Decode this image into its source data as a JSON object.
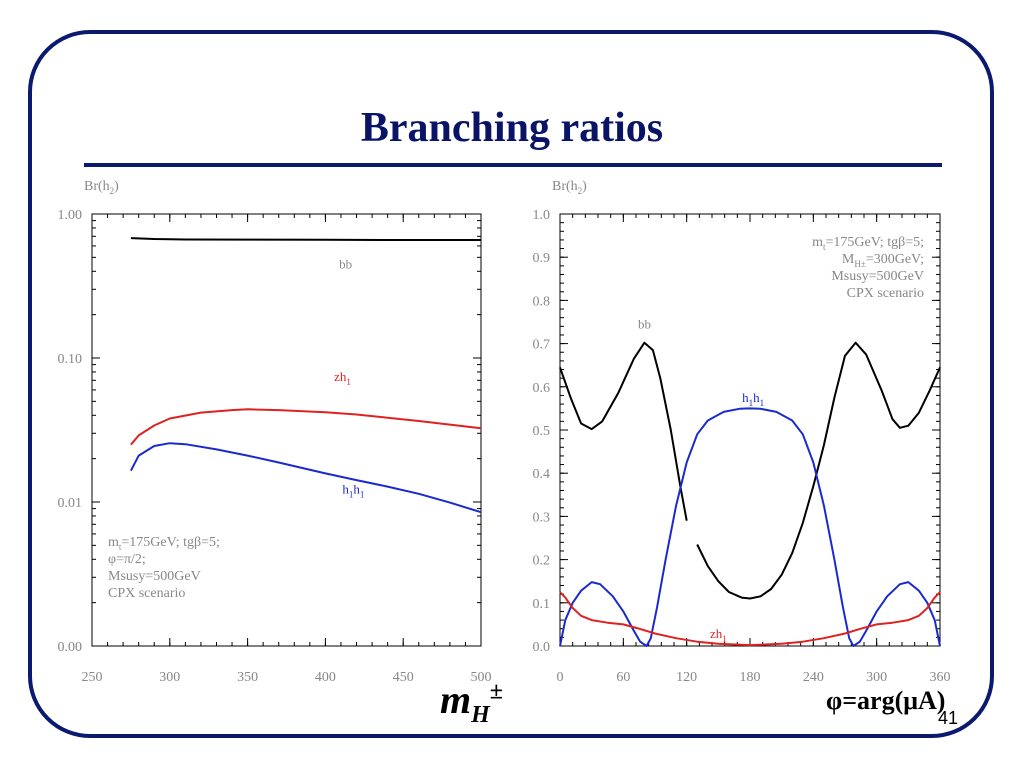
{
  "slide": {
    "title": "Branching ratios",
    "page_number": "41",
    "colors": {
      "frame": "#0a1a6e",
      "title": "#0a1466"
    }
  },
  "chart_data": [
    {
      "type": "line",
      "y_scale": "log",
      "ylabel": "Br(h2)",
      "xlabel": "mH±",
      "xlim": [
        250,
        500
      ],
      "ylim": [
        0.001,
        1.0
      ],
      "x_ticks": [
        250,
        300,
        350,
        400,
        450,
        500
      ],
      "y_ticks": [
        {
          "value": 0.001,
          "label": "0.00"
        },
        {
          "value": 0.01,
          "label": "0.01"
        },
        {
          "value": 0.1,
          "label": "0.10"
        },
        {
          "value": 1.0,
          "label": "1.00"
        }
      ],
      "grid": false,
      "series": [
        {
          "name": "bb",
          "color": "#000000",
          "points": [
            [
              275,
              0.68
            ],
            [
              290,
              0.67
            ],
            [
              310,
              0.665
            ],
            [
              350,
              0.664
            ],
            [
              400,
              0.662
            ],
            [
              450,
              0.66
            ],
            [
              500,
              0.66
            ]
          ],
          "label_at": [
            413,
            0.42
          ]
        },
        {
          "name": "zh1",
          "color": "#dd2222",
          "points": [
            [
              275,
              0.025
            ],
            [
              280,
              0.029
            ],
            [
              290,
              0.034
            ],
            [
              300,
              0.038
            ],
            [
              320,
              0.0418
            ],
            [
              340,
              0.0435
            ],
            [
              350,
              0.044
            ],
            [
              370,
              0.0435
            ],
            [
              400,
              0.042
            ],
            [
              420,
              0.0405
            ],
            [
              440,
              0.0385
            ],
            [
              460,
              0.0365
            ],
            [
              480,
              0.0345
            ],
            [
              500,
              0.0325
            ]
          ],
          "label_at": [
            411,
            0.069
          ]
        },
        {
          "name": "h1h1",
          "color": "#1a2acc",
          "points": [
            [
              275,
              0.0165
            ],
            [
              280,
              0.021
            ],
            [
              290,
              0.0245
            ],
            [
              300,
              0.0256
            ],
            [
              310,
              0.0252
            ],
            [
              330,
              0.0232
            ],
            [
              350,
              0.021
            ],
            [
              370,
              0.0188
            ],
            [
              400,
              0.0158
            ],
            [
              420,
              0.0142
            ],
            [
              440,
              0.0128
            ],
            [
              460,
              0.0114
            ],
            [
              480,
              0.0099
            ],
            [
              500,
              0.0085
            ]
          ],
          "label_at": [
            418,
            0.0115
          ]
        }
      ],
      "annotation": [
        "mt=175GeV; tgβ=5;",
        "φ=π/2;",
        "Msusy=500GeV",
        "CPX scenario"
      ]
    },
    {
      "type": "line",
      "ylabel": "Br(h2)",
      "xlabel": "φ=arg(μA)",
      "xlim": [
        0,
        360
      ],
      "ylim": [
        0.0,
        1.0
      ],
      "x_ticks": [
        0,
        60,
        120,
        180,
        240,
        300,
        360
      ],
      "y_ticks": [
        {
          "value": 0.0,
          "label": "0.0"
        },
        {
          "value": 0.1,
          "label": "0.1"
        },
        {
          "value": 0.2,
          "label": "0.2"
        },
        {
          "value": 0.3,
          "label": "0.3"
        },
        {
          "value": 0.4,
          "label": "0.4"
        },
        {
          "value": 0.5,
          "label": "0.5"
        },
        {
          "value": 0.6,
          "label": "0.6"
        },
        {
          "value": 0.7,
          "label": "0.7"
        },
        {
          "value": 0.8,
          "label": "0.8"
        },
        {
          "value": 0.9,
          "label": "0.9"
        },
        {
          "value": 1.0,
          "label": "1.0"
        }
      ],
      "grid": false,
      "series": [
        {
          "name": "bb",
          "color": "#000000",
          "segments": [
            [
              [
                0,
                0.645
              ],
              [
                10,
                0.575
              ],
              [
                20,
                0.515
              ],
              [
                30,
                0.502
              ],
              [
                40,
                0.52
              ],
              [
                55,
                0.585
              ],
              [
                70,
                0.665
              ],
              [
                80,
                0.702
              ],
              [
                88,
                0.685
              ],
              [
                95,
                0.62
              ],
              [
                105,
                0.5
              ],
              [
                114,
                0.37
              ],
              [
                120,
                0.29
              ]
            ],
            [
              [
                130,
                0.235
              ],
              [
                140,
                0.185
              ],
              [
                150,
                0.15
              ],
              [
                160,
                0.125
              ],
              [
                172,
                0.112
              ],
              [
                180,
                0.11
              ],
              [
                190,
                0.115
              ],
              [
                200,
                0.132
              ],
              [
                210,
                0.165
              ],
              [
                220,
                0.215
              ],
              [
                230,
                0.285
              ],
              [
                240,
                0.37
              ],
              [
                250,
                0.465
              ],
              [
                260,
                0.575
              ],
              [
                270,
                0.672
              ],
              [
                280,
                0.702
              ],
              [
                290,
                0.675
              ],
              [
                305,
                0.59
              ],
              [
                315,
                0.525
              ],
              [
                322,
                0.505
              ],
              [
                330,
                0.51
              ],
              [
                340,
                0.54
              ],
              [
                350,
                0.59
              ],
              [
                360,
                0.645
              ]
            ]
          ],
          "label_at": [
            80,
            0.735
          ]
        },
        {
          "name": "h1h1",
          "color": "#1a2acc",
          "segments": [
            [
              [
                0,
                0.0
              ],
              [
                5,
                0.06
              ],
              [
                12,
                0.1
              ],
              [
                20,
                0.128
              ],
              [
                30,
                0.148
              ],
              [
                38,
                0.143
              ],
              [
                50,
                0.115
              ],
              [
                60,
                0.08
              ],
              [
                70,
                0.035
              ],
              [
                76,
                0.01
              ],
              [
                82,
                0.0
              ],
              [
                86,
                0.018
              ],
              [
                92,
                0.09
              ],
              [
                100,
                0.2
              ],
              [
                110,
                0.325
              ],
              [
                120,
                0.425
              ],
              [
                130,
                0.49
              ],
              [
                140,
                0.522
              ],
              [
                155,
                0.542
              ],
              [
                170,
                0.549
              ],
              [
                180,
                0.55
              ],
              [
                190,
                0.549
              ],
              [
                205,
                0.542
              ],
              [
                220,
                0.522
              ],
              [
                230,
                0.49
              ],
              [
                240,
                0.425
              ],
              [
                250,
                0.325
              ],
              [
                260,
                0.2
              ],
              [
                268,
                0.09
              ],
              [
                274,
                0.018
              ],
              [
                278,
                0.0
              ],
              [
                284,
                0.01
              ],
              [
                290,
                0.035
              ],
              [
                300,
                0.08
              ],
              [
                310,
                0.115
              ],
              [
                322,
                0.143
              ],
              [
                330,
                0.148
              ],
              [
                340,
                0.128
              ],
              [
                348,
                0.1
              ],
              [
                355,
                0.06
              ],
              [
                360,
                0.0
              ]
            ]
          ],
          "label_at": [
            183,
            0.565
          ]
        },
        {
          "name": "zh1",
          "color": "#dd2222",
          "segments": [
            [
              [
                0,
                0.125
              ],
              [
                5,
                0.112
              ],
              [
                12,
                0.088
              ],
              [
                20,
                0.07
              ],
              [
                30,
                0.06
              ],
              [
                45,
                0.054
              ],
              [
                60,
                0.05
              ],
              [
                75,
                0.04
              ],
              [
                90,
                0.029
              ],
              [
                110,
                0.018
              ],
              [
                130,
                0.01
              ],
              [
                150,
                0.005
              ],
              [
                180,
                0.002
              ],
              [
                210,
                0.005
              ],
              [
                230,
                0.01
              ],
              [
                250,
                0.018
              ],
              [
                270,
                0.029
              ],
              [
                285,
                0.04
              ],
              [
                300,
                0.05
              ],
              [
                315,
                0.054
              ],
              [
                330,
                0.06
              ],
              [
                340,
                0.07
              ],
              [
                348,
                0.088
              ],
              [
                355,
                0.112
              ],
              [
                360,
                0.125
              ]
            ]
          ],
          "label_at": [
            150,
            0.018
          ]
        }
      ],
      "annotation": [
        "mt=175GeV; tgβ=5;",
        "MH±=300GeV;",
        "Msusy=500GeV",
        "CPX scenario"
      ]
    }
  ]
}
